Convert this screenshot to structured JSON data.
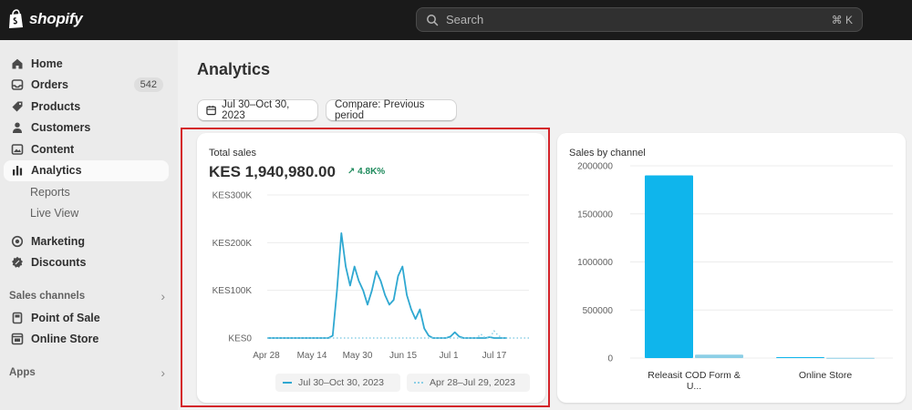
{
  "topbar": {
    "brand": "shopify",
    "search_placeholder": "Search",
    "search_shortcut": "⌘ K"
  },
  "sidebar": {
    "items": [
      {
        "label": "Home",
        "icon": "home-icon"
      },
      {
        "label": "Orders",
        "icon": "inbox-icon",
        "badge": "542"
      },
      {
        "label": "Products",
        "icon": "tag-icon"
      },
      {
        "label": "Customers",
        "icon": "person-icon"
      },
      {
        "label": "Content",
        "icon": "image-icon"
      },
      {
        "label": "Analytics",
        "icon": "bar-chart-icon",
        "active": true
      }
    ],
    "analytics_sub": [
      "Reports",
      "Live View"
    ],
    "items2": [
      {
        "label": "Marketing",
        "icon": "target-icon"
      },
      {
        "label": "Discounts",
        "icon": "discount-icon"
      }
    ],
    "sales_channels_label": "Sales channels",
    "channels": [
      {
        "label": "Point of Sale",
        "icon": "pos-icon"
      },
      {
        "label": "Online Store",
        "icon": "store-icon"
      }
    ],
    "apps_label": "Apps"
  },
  "main": {
    "title": "Analytics",
    "date_range": "Jul 30–Oct 30, 2023",
    "compare_label": "Compare: Previous period"
  },
  "colors": {
    "accent": "#2fa8d1",
    "bar_primary": "#0fb5ec",
    "bar_compare": "#8ccfe6",
    "positive": "#1e8a5c",
    "highlight": "#d4242a"
  },
  "chart_data": [
    {
      "type": "line",
      "title": "Total sales",
      "total": "KES 1,940,980.00",
      "change": "4.8K%",
      "y_ticks": [
        "KES0",
        "KES100K",
        "KES200K",
        "KES300K"
      ],
      "ylim": [
        0,
        300000
      ],
      "x_ticks": [
        "Apr 28",
        "May 14",
        "May 30",
        "Jun 15",
        "Jul 1",
        "Jul 17"
      ],
      "grid": true,
      "legend_position": "bottom",
      "series": [
        {
          "name": "Jul 30–Oct 30, 2023",
          "style": "solid",
          "points": [
            [
              0,
              0
            ],
            [
              14,
              0
            ],
            [
              15,
              5000
            ],
            [
              16,
              100000
            ],
            [
              17,
              220000
            ],
            [
              18,
              150000
            ],
            [
              19,
              110000
            ],
            [
              20,
              150000
            ],
            [
              21,
              120000
            ],
            [
              22,
              100000
            ],
            [
              23,
              70000
            ],
            [
              24,
              100000
            ],
            [
              25,
              140000
            ],
            [
              26,
              120000
            ],
            [
              27,
              90000
            ],
            [
              28,
              70000
            ],
            [
              29,
              80000
            ],
            [
              30,
              130000
            ],
            [
              31,
              150000
            ],
            [
              32,
              90000
            ],
            [
              33,
              60000
            ],
            [
              34,
              40000
            ],
            [
              35,
              60000
            ],
            [
              36,
              20000
            ],
            [
              37,
              5000
            ],
            [
              38,
              0
            ],
            [
              41,
              0
            ],
            [
              42,
              3000
            ],
            [
              43,
              12000
            ],
            [
              44,
              3000
            ],
            [
              45,
              0
            ],
            [
              50,
              0
            ],
            [
              51,
              2000
            ],
            [
              52,
              0
            ],
            [
              55,
              0
            ]
          ]
        },
        {
          "name": "Apr 28–Jul 29, 2023",
          "style": "dotted",
          "points": [
            [
              0,
              0
            ],
            [
              48,
              0
            ],
            [
              49,
              8000
            ],
            [
              50,
              0
            ],
            [
              51,
              0
            ],
            [
              52,
              15000
            ],
            [
              53,
              5000
            ],
            [
              54,
              0
            ],
            [
              60,
              0
            ]
          ]
        }
      ]
    },
    {
      "type": "bar",
      "title": "Sales by channel",
      "categories": [
        "Releasit COD Form & U...",
        "Online Store"
      ],
      "series": [
        {
          "name": "Jul 30–Oct 30, 2023",
          "values": [
            1900000,
            10000
          ]
        },
        {
          "name": "Apr 28–Jul 29, 2023",
          "values": [
            35000,
            2000
          ]
        }
      ],
      "y_ticks": [
        "0",
        "500000",
        "1000000",
        "1500000",
        "2000000"
      ],
      "ylim": [
        0,
        2000000
      ],
      "grid": true
    }
  ]
}
